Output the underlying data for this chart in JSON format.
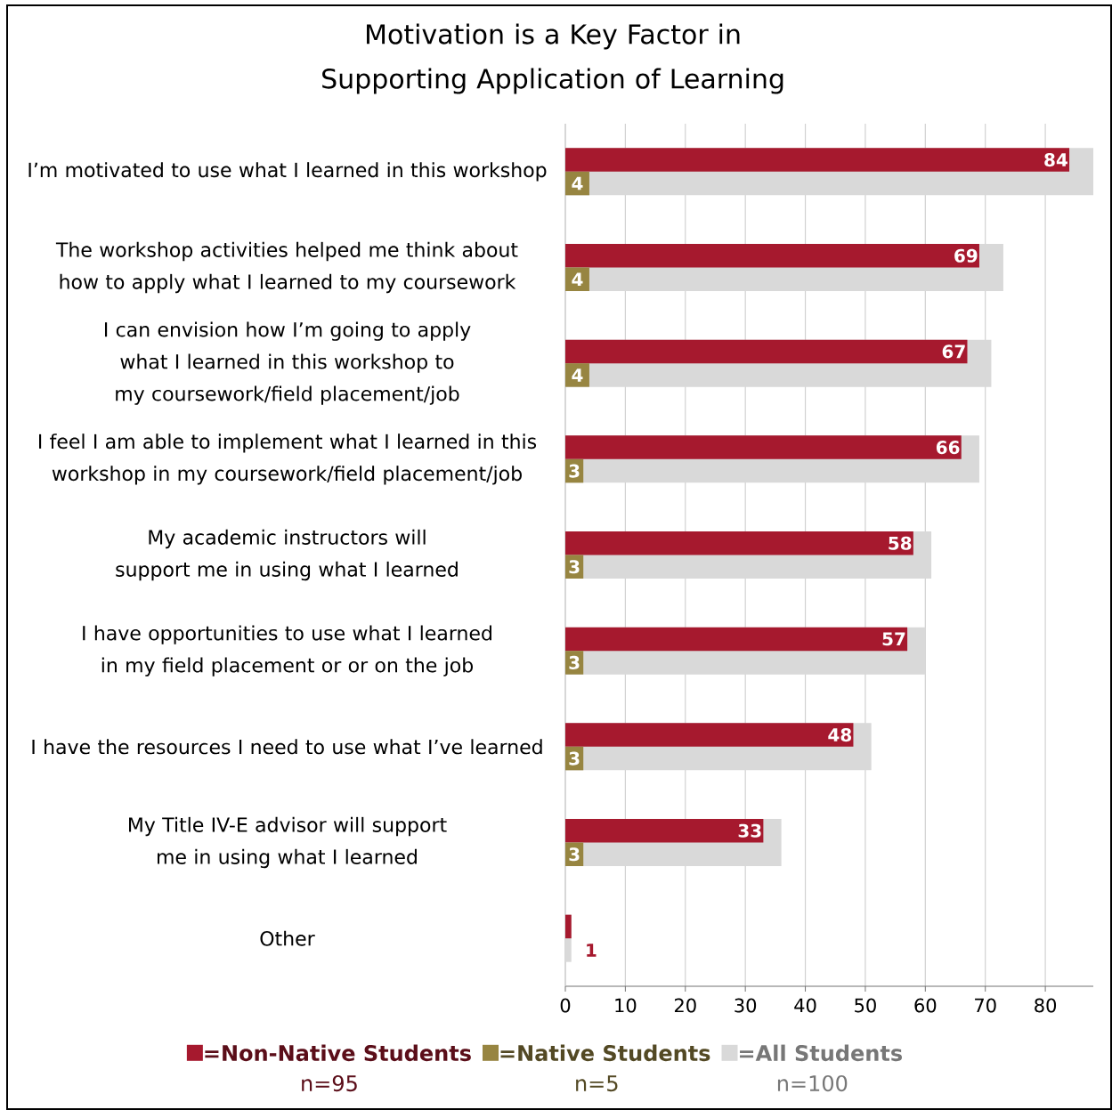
{
  "chart_data": {
    "type": "bar",
    "orientation": "horizontal",
    "title": "Motivation is a Key Factor in Supporting Application of Learning",
    "categories": [
      "I’m motivated to use what I learned in this workshop",
      "The workshop activities helped me think about how to apply what I learned to my coursework",
      "I can envision how I’m going to apply what I learned in this workshop to my coursework/field placement/job",
      "I feel I am able to implement what I learned in this workshop in my coursework/field placement/job",
      "My academic instructors will support me in using what I learned",
      "I have opportunities to use what I learned in my field placement or or on the job",
      "I have the resources I need to use what I’ve learned",
      "My Title IV-E advisor will support me in using what I learned",
      "Other"
    ],
    "series": [
      {
        "name": "=Non-Native Students",
        "color": "#a6192e",
        "values": [
          84,
          69,
          67,
          66,
          58,
          57,
          48,
          33,
          1
        ],
        "value_labels": [
          "84",
          "69",
          "67",
          "66",
          "58",
          "57",
          "48",
          "33",
          "1"
        ]
      },
      {
        "name": "=Native Students",
        "color": "#978541",
        "values": [
          4,
          4,
          4,
          3,
          3,
          3,
          3,
          3,
          null
        ],
        "value_labels": [
          "4",
          "4",
          "4",
          "3",
          "3",
          "3",
          "3",
          "3",
          null
        ]
      },
      {
        "name": "=All Students",
        "color": "#d9d9d9",
        "values": [
          88,
          73,
          71,
          69,
          61,
          60,
          51,
          36,
          1
        ]
      }
    ],
    "annotations": [
      "n=95",
      "n=5",
      "n=100"
    ],
    "xlim": [
      0,
      88
    ],
    "xticks": [
      0,
      10,
      20,
      30,
      40,
      50,
      60,
      70,
      80
    ],
    "grid": "x",
    "legend": "bottom"
  }
}
